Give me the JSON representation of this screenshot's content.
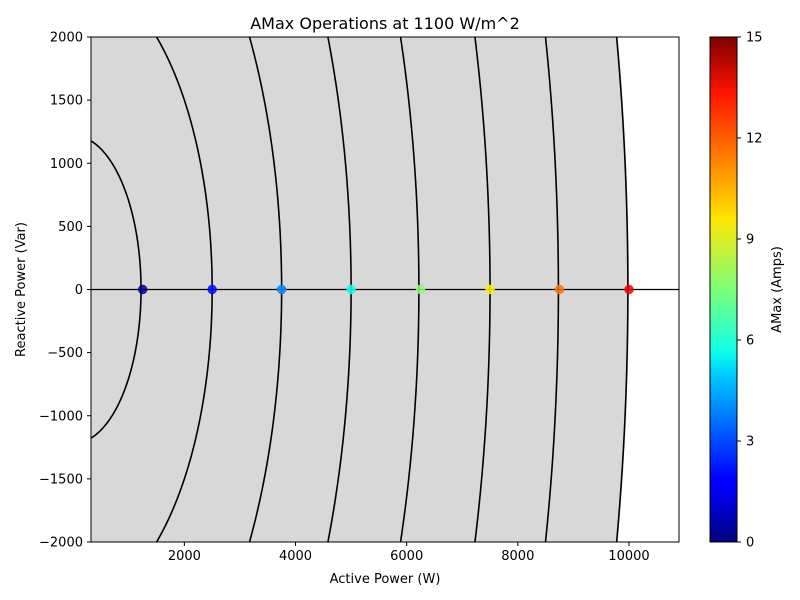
{
  "chart_data": {
    "type": "scatter",
    "title": "AMax Operations at 1100 W/m^2",
    "xlabel": "Active Power (W)",
    "ylabel": "Reactive Power (Var)",
    "xlim": [
      320,
      10900
    ],
    "ylim": [
      -2000,
      2000
    ],
    "xticks": [
      2000,
      4000,
      6000,
      8000,
      10000
    ],
    "yticks": [
      -2000,
      -1500,
      -1000,
      -500,
      0,
      500,
      1000,
      1500,
      2000
    ],
    "xtick_labels": [
      "2000",
      "4000",
      "6000",
      "8000",
      "10000"
    ],
    "ytick_labels": [
      "−2000",
      "−1500",
      "−1000",
      "−500",
      "0",
      "500",
      "1000",
      "1500",
      "2000"
    ],
    "grid": false,
    "feasible_region": {
      "color": "#d8d8d8",
      "q_max": 2000,
      "x_edge": 10000
    },
    "arcs": [
      {
        "apparent_power": 1220
      },
      {
        "apparent_power": 2500
      },
      {
        "apparent_power": 3750
      },
      {
        "apparent_power": 5000
      },
      {
        "apparent_power": 6220
      },
      {
        "apparent_power": 7500
      },
      {
        "apparent_power": 8730
      },
      {
        "apparent_power": 9980
      }
    ],
    "points": [
      {
        "x": 1250,
        "y": 0,
        "amax": 0.3
      },
      {
        "x": 2500,
        "y": 0,
        "amax": 2.0
      },
      {
        "x": 3750,
        "y": 0,
        "amax": 3.9
      },
      {
        "x": 5000,
        "y": 0,
        "amax": 5.9
      },
      {
        "x": 6250,
        "y": 0,
        "amax": 7.7
      },
      {
        "x": 7500,
        "y": 0,
        "amax": 9.6
      },
      {
        "x": 8750,
        "y": 0,
        "amax": 11.4
      },
      {
        "x": 10000,
        "y": 0,
        "amax": 13.3
      }
    ],
    "colorbar": {
      "label": "AMax (Amps)",
      "colormap": "jet",
      "range": [
        0,
        15
      ],
      "ticks": [
        0,
        3,
        6,
        9,
        12,
        15
      ],
      "tick_labels": [
        "0",
        "3",
        "6",
        "9",
        "12",
        "15"
      ]
    }
  }
}
